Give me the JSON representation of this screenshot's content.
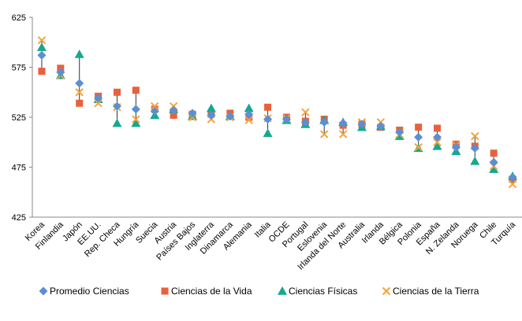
{
  "chart_data": {
    "type": "scatter",
    "title": "",
    "xlabel": "",
    "ylabel": "",
    "ylim": [
      425,
      625
    ],
    "yticks": [
      425,
      475,
      525,
      575,
      625
    ],
    "grid": false,
    "legend_position": "bottom",
    "categories": [
      "Korea",
      "Finlandia",
      "Japón",
      "EE.UU.",
      "Rep. Checa",
      "Hungría",
      "Suecia",
      "Austria",
      "Países Bajos",
      "Inglaterra",
      "Dinamarca",
      "Alemania",
      "Italia",
      "OCDE",
      "Portugal",
      "Eslovenia",
      "Irlanda del Norte",
      "Australia",
      "Irlanda",
      "Bélgica",
      "Polonia",
      "España",
      "N. Zelanda",
      "Noruega",
      "Chile",
      "Turquía"
    ],
    "highlighted_categories": [
      "OCDE",
      "España"
    ],
    "highlight_color": "#9b2d6e",
    "series": [
      {
        "name": "Promedio Ciencias",
        "marker": "diamond",
        "color": "#5b8fd4",
        "values": [
          587,
          570,
          559,
          544,
          536,
          533,
          531,
          532,
          529,
          527,
          526,
          528,
          523,
          523,
          520,
          520,
          519,
          518,
          516,
          510,
          505,
          505,
          495,
          494,
          480,
          465
        ]
      },
      {
        "name": "Ciencias de la Vida",
        "marker": "square",
        "color": "#e8613c",
        "values": [
          571,
          574,
          539,
          546,
          550,
          552,
          533,
          527,
          528,
          528,
          529,
          525,
          535,
          525,
          521,
          523,
          517,
          518,
          515,
          512,
          515,
          514,
          498,
          496,
          489,
          463
        ]
      },
      {
        "name": "Ciencias Físicas",
        "marker": "triangle",
        "color": "#16a88e",
        "values": [
          595,
          567,
          588,
          543,
          519,
          519,
          527,
          533,
          526,
          534,
          526,
          534,
          509,
          522,
          518,
          522,
          520,
          515,
          516,
          506,
          494,
          496,
          491,
          481,
          473,
          466
        ]
      },
      {
        "name": "Ciencias de la Tierra",
        "marker": "x",
        "color": "#f5a33c",
        "values": [
          602,
          567,
          550,
          539,
          535,
          523,
          536,
          536,
          525,
          523,
          525,
          522,
          524,
          524,
          530,
          508,
          508,
          520,
          520,
          508,
          495,
          500,
          497,
          506,
          476,
          458
        ]
      }
    ]
  }
}
